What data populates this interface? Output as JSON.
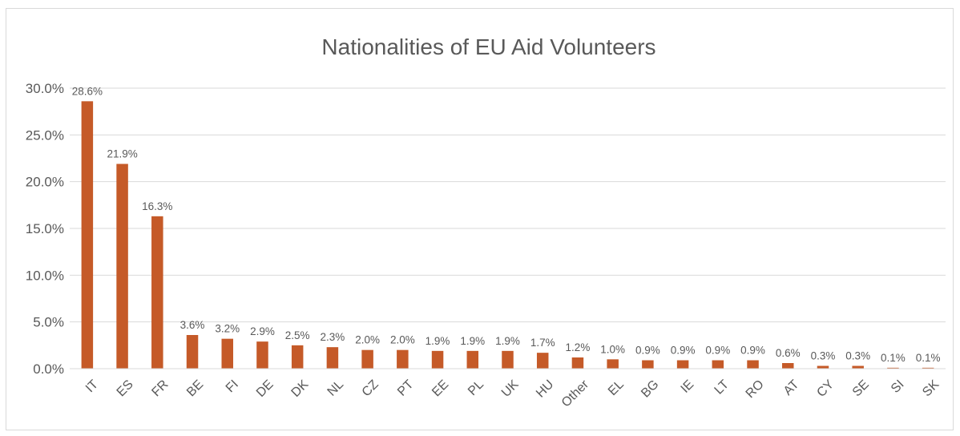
{
  "chart_data": {
    "type": "bar",
    "title": "Nationalities of EU Aid Volunteers",
    "xlabel": "",
    "ylabel": "",
    "categories": [
      "IT",
      "ES",
      "FR",
      "BE",
      "FI",
      "DE",
      "DK",
      "NL",
      "CZ",
      "PT",
      "EE",
      "PL",
      "UK",
      "HU",
      "Other",
      "EL",
      "BG",
      "IE",
      "LT",
      "RO",
      "AT",
      "CY",
      "SE",
      "SI",
      "SK"
    ],
    "values": [
      28.6,
      21.9,
      16.3,
      3.6,
      3.2,
      2.9,
      2.5,
      2.3,
      2.0,
      2.0,
      1.9,
      1.9,
      1.9,
      1.7,
      1.2,
      1.0,
      0.9,
      0.9,
      0.9,
      0.9,
      0.6,
      0.3,
      0.3,
      0.1,
      0.1
    ],
    "value_labels": [
      "28.6%",
      "21.9%",
      "16.3%",
      "3.6%",
      "3.2%",
      "2.9%",
      "2.5%",
      "2.3%",
      "2.0%",
      "2.0%",
      "1.9%",
      "1.9%",
      "1.9%",
      "1.7%",
      "1.2%",
      "1.0%",
      "0.9%",
      "0.9%",
      "0.9%",
      "0.9%",
      "0.6%",
      "0.3%",
      "0.3%",
      "0.1%",
      "0.1%"
    ],
    "ylim": [
      0,
      30
    ],
    "yticks": [
      0,
      5,
      10,
      15,
      20,
      25,
      30
    ],
    "ytick_labels": [
      "0.0%",
      "5.0%",
      "10.0%",
      "15.0%",
      "20.0%",
      "25.0%",
      "30.0%"
    ],
    "grid": "horizontal",
    "legend": "none",
    "colors": {
      "bar": "#c55a28",
      "grid": "#d9d9d9",
      "text": "#595959"
    }
  }
}
